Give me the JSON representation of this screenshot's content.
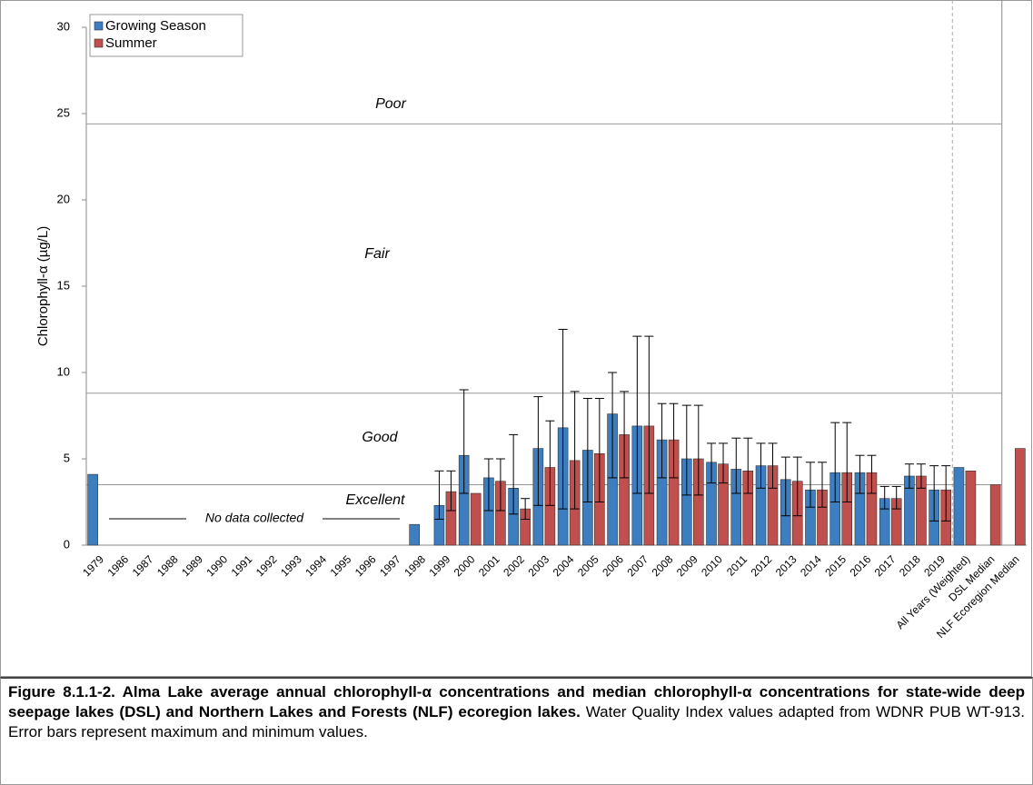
{
  "chart_data": {
    "type": "bar",
    "ylabel": "Chlorophyll-α  (µg/L)",
    "ylim": [
      0,
      30
    ],
    "yticks": [
      0,
      5,
      10,
      15,
      20,
      25,
      30
    ],
    "categories": [
      "1979",
      "1986",
      "1987",
      "1988",
      "1989",
      "1990",
      "1991",
      "1992",
      "1993",
      "1994",
      "1995",
      "1996",
      "1997",
      "1998",
      "1999",
      "2000",
      "2001",
      "2002",
      "2003",
      "2004",
      "2005",
      "2006",
      "2007",
      "2008",
      "2009",
      "2010",
      "2011",
      "2012",
      "2013",
      "2014",
      "2015",
      "2016",
      "2017",
      "2018",
      "2019",
      "All Years (Weighted)",
      "DSL Median",
      "NLF Ecoregion Median"
    ],
    "series": [
      {
        "name": "Growing Season",
        "color": "#3d7ec0",
        "values": [
          4.1,
          null,
          null,
          null,
          null,
          null,
          null,
          null,
          null,
          null,
          null,
          null,
          null,
          1.2,
          2.3,
          5.2,
          3.9,
          3.3,
          5.6,
          6.8,
          5.5,
          7.6,
          6.9,
          6.1,
          5.0,
          4.8,
          4.4,
          4.6,
          3.8,
          3.2,
          4.2,
          4.2,
          2.7,
          4.0,
          3.2,
          4.5,
          null,
          null
        ],
        "error_max": [
          null,
          null,
          null,
          null,
          null,
          null,
          null,
          null,
          null,
          null,
          null,
          null,
          null,
          null,
          4.3,
          9.0,
          5.0,
          6.4,
          8.6,
          12.5,
          8.5,
          10.0,
          12.1,
          8.2,
          8.1,
          5.9,
          6.2,
          5.9,
          5.1,
          4.8,
          7.1,
          5.2,
          3.4,
          4.7,
          4.6,
          null,
          null,
          null
        ],
        "error_min": [
          null,
          null,
          null,
          null,
          null,
          null,
          null,
          null,
          null,
          null,
          null,
          null,
          null,
          null,
          1.5,
          3.0,
          2.0,
          1.8,
          2.3,
          2.1,
          2.5,
          3.9,
          3.0,
          3.9,
          2.9,
          3.6,
          3.0,
          3.3,
          1.7,
          2.2,
          2.5,
          3.0,
          2.1,
          3.3,
          1.4,
          null,
          null,
          null
        ]
      },
      {
        "name": "Summer",
        "color": "#c0504d",
        "values": [
          null,
          null,
          null,
          null,
          null,
          null,
          null,
          null,
          null,
          null,
          null,
          null,
          null,
          null,
          3.1,
          3.0,
          3.7,
          2.1,
          4.5,
          4.9,
          5.3,
          6.4,
          6.9,
          6.1,
          5.0,
          4.7,
          4.3,
          4.6,
          3.7,
          3.2,
          4.2,
          4.2,
          2.7,
          4.0,
          3.2,
          4.3,
          3.5,
          5.6
        ],
        "error_max": [
          null,
          null,
          null,
          null,
          null,
          null,
          null,
          null,
          null,
          null,
          null,
          null,
          null,
          null,
          4.3,
          null,
          5.0,
          2.7,
          7.2,
          8.9,
          8.5,
          8.9,
          12.1,
          8.2,
          8.1,
          5.9,
          6.2,
          5.9,
          5.1,
          4.8,
          7.1,
          5.2,
          3.4,
          4.7,
          4.6,
          null,
          null,
          null
        ],
        "error_min": [
          null,
          null,
          null,
          null,
          null,
          null,
          null,
          null,
          null,
          null,
          null,
          null,
          null,
          null,
          2.0,
          null,
          2.0,
          1.5,
          2.3,
          2.1,
          2.5,
          3.9,
          3.0,
          3.9,
          2.9,
          3.6,
          3.0,
          3.3,
          1.7,
          2.2,
          2.5,
          3.0,
          2.1,
          3.3,
          1.4,
          null,
          null,
          null
        ]
      }
    ],
    "thresholds": [
      24.4,
      8.8,
      3.5
    ],
    "annotations": [
      "Poor",
      "Fair",
      "Good",
      "Excellent",
      "No data collected"
    ],
    "legend": "upper left"
  },
  "caption": {
    "bold": "Figure 8.1.1-2. Alma Lake average annual chlorophyll-α concentrations and median chlorophyll-α concentrations for state-wide deep seepage lakes (DSL) and Northern Lakes and Forests (NLF) ecoregion lakes.",
    "text": "Water Quality Index values adapted from WDNR PUB WT-913.  Error bars represent maximum and minimum values."
  }
}
